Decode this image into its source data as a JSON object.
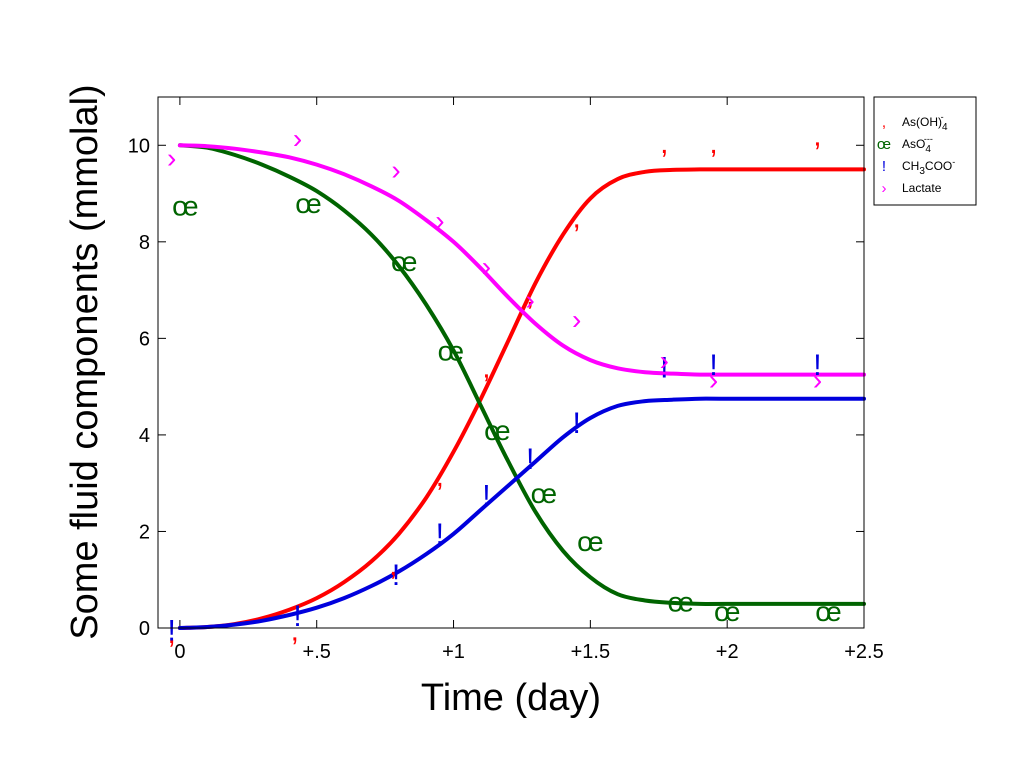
{
  "chart_data": {
    "type": "line",
    "xlabel": "Time (day)",
    "ylabel": "Some fluid components (mmolal)",
    "xlim": [
      -0.08,
      2.5
    ],
    "ylim": [
      0,
      11
    ],
    "x_ticks": [
      0,
      0.5,
      1,
      1.5,
      2,
      2.5
    ],
    "x_tick_labels": [
      "0",
      "+.5",
      "+1",
      "+1.5",
      "+2",
      "+2.5"
    ],
    "y_ticks": [
      0,
      2,
      4,
      6,
      8,
      10
    ],
    "y_tick_labels": [
      "0",
      "2",
      "4",
      "6",
      "8",
      "10"
    ],
    "legend_position": "top-right (outside plot)",
    "series": [
      {
        "name": "As(OH)4-",
        "legend": {
          "base": "As(OH)",
          "sub": "4",
          "sup": "-"
        },
        "color": "#ff0000",
        "marker": ",",
        "curve": {
          "x": [
            0,
            0.1,
            0.2,
            0.3,
            0.4,
            0.5,
            0.6,
            0.7,
            0.8,
            0.9,
            1.0,
            1.1,
            1.2,
            1.3,
            1.4,
            1.5,
            1.6,
            1.7,
            1.8,
            1.9,
            2.0,
            2.5
          ],
          "y": [
            0,
            0.02,
            0.08,
            0.2,
            0.38,
            0.62,
            0.95,
            1.38,
            1.95,
            2.7,
            3.65,
            4.75,
            5.95,
            7.15,
            8.15,
            8.9,
            9.3,
            9.45,
            9.49,
            9.5,
            9.5,
            9.5
          ]
        },
        "points": {
          "x": [
            -0.03,
            0.42,
            0.78,
            0.95,
            1.12,
            1.28,
            1.45,
            1.77,
            1.95,
            2.33
          ],
          "y": [
            -0.1,
            -0.05,
            1.3,
            3.15,
            5.4,
            6.9,
            8.5,
            10.05,
            10.05,
            10.2
          ]
        }
      },
      {
        "name": "AsO4---",
        "legend": {
          "base": "AsO",
          "sub": "4",
          "sup": "---"
        },
        "color": "#006400",
        "marker": "œ",
        "curve": {
          "x": [
            0,
            0.1,
            0.2,
            0.3,
            0.4,
            0.5,
            0.6,
            0.7,
            0.8,
            0.9,
            1.0,
            1.1,
            1.2,
            1.3,
            1.4,
            1.5,
            1.6,
            1.7,
            1.8,
            1.9,
            2.0,
            2.5
          ],
          "y": [
            10,
            9.95,
            9.8,
            9.6,
            9.35,
            9.05,
            8.65,
            8.15,
            7.5,
            6.7,
            5.75,
            4.6,
            3.45,
            2.4,
            1.6,
            1.05,
            0.7,
            0.57,
            0.52,
            0.5,
            0.5,
            0.5
          ]
        },
        "points": {
          "x": [
            0.02,
            0.47,
            0.82,
            0.99,
            1.16,
            1.33,
            1.5,
            1.83,
            2.0,
            2.37
          ],
          "y": [
            8.75,
            8.8,
            7.6,
            5.75,
            4.1,
            2.8,
            1.8,
            0.55,
            0.35,
            0.35
          ]
        }
      },
      {
        "name": "CH3COO-",
        "legend": {
          "base": "CH",
          "sub": "3",
          "base2": "COO",
          "sup": "-"
        },
        "color": "#0000dd",
        "marker": "!",
        "curve": {
          "x": [
            0,
            0.1,
            0.2,
            0.3,
            0.4,
            0.5,
            0.6,
            0.7,
            0.8,
            0.9,
            1.0,
            1.1,
            1.2,
            1.3,
            1.4,
            1.5,
            1.6,
            1.7,
            1.8,
            1.9,
            2.0,
            2.5
          ],
          "y": [
            0,
            0.02,
            0.07,
            0.15,
            0.27,
            0.42,
            0.62,
            0.87,
            1.17,
            1.53,
            1.95,
            2.45,
            2.95,
            3.45,
            3.95,
            4.35,
            4.6,
            4.7,
            4.73,
            4.75,
            4.75,
            4.75
          ]
        },
        "points": {
          "x": [
            -0.03,
            0.43,
            0.79,
            0.95,
            1.12,
            1.28,
            1.45,
            1.77,
            1.95,
            2.33
          ],
          "y": [
            -0.05,
            0.25,
            1.1,
            1.95,
            2.75,
            3.5,
            4.25,
            5.4,
            5.45,
            5.45
          ]
        }
      },
      {
        "name": "Lactate",
        "legend": {
          "base": "Lactate"
        },
        "color": "#ff00ff",
        "marker": "›",
        "curve": {
          "x": [
            0,
            0.1,
            0.2,
            0.3,
            0.4,
            0.5,
            0.6,
            0.7,
            0.8,
            0.9,
            1.0,
            1.1,
            1.2,
            1.3,
            1.4,
            1.5,
            1.6,
            1.7,
            1.8,
            1.9,
            2.0,
            2.5
          ],
          "y": [
            10,
            9.98,
            9.93,
            9.85,
            9.75,
            9.6,
            9.4,
            9.15,
            8.85,
            8.45,
            8.0,
            7.45,
            6.85,
            6.3,
            5.85,
            5.55,
            5.38,
            5.3,
            5.27,
            5.25,
            5.25,
            5.25
          ]
        },
        "points": {
          "x": [
            -0.03,
            0.43,
            0.79,
            0.95,
            1.12,
            1.28,
            1.45,
            1.77,
            1.95,
            2.33
          ],
          "y": [
            9.75,
            10.15,
            9.5,
            8.45,
            7.5,
            6.8,
            6.4,
            5.55,
            5.15,
            5.15
          ]
        }
      }
    ]
  }
}
